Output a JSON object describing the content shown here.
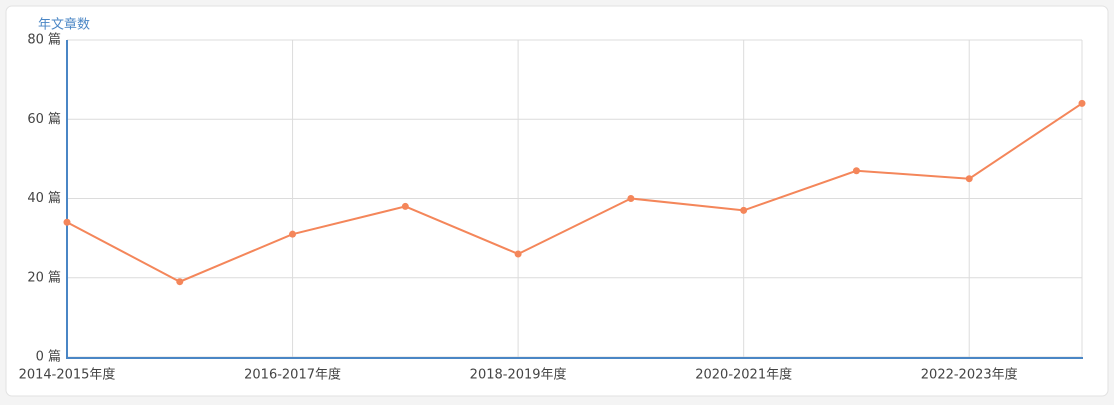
{
  "chart_data": {
    "type": "line",
    "y_label": "年文章数",
    "categories": [
      "2014-2015年度",
      null,
      "2016-2017年度",
      null,
      "2018-2019年度",
      null,
      "2020-2021年度",
      null,
      "2022-2023年度",
      null
    ],
    "series": [
      {
        "color": "#f4865a",
        "values": [
          34,
          19,
          31,
          38,
          26,
          40,
          37,
          47,
          45,
          64
        ]
      }
    ],
    "ylim": [
      0,
      80
    ],
    "yticks": [
      {
        "value": 0,
        "label": "0 篇"
      },
      {
        "value": 20,
        "label": "20 篇"
      },
      {
        "value": 40,
        "label": "40 篇"
      },
      {
        "value": 60,
        "label": "60 篇"
      },
      {
        "value": 80,
        "label": "80 篇"
      }
    ],
    "grid": true
  }
}
